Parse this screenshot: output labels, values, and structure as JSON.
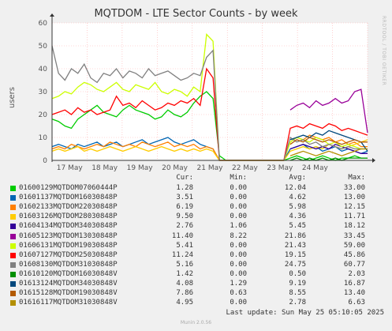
{
  "chart_data": {
    "type": "line",
    "title": "MQTDOM - LTE Sector Counts - by week",
    "ylabel": "users",
    "ylim": [
      0,
      60
    ],
    "yticks": [
      0,
      10,
      20,
      30,
      40,
      50,
      60
    ],
    "xticks": [
      "17 May",
      "18 May",
      "19 May",
      "20 May",
      "21 May",
      "22 May",
      "23 May",
      "24 May"
    ],
    "x_range_days": [
      "16 May",
      "25 May"
    ],
    "grid": true,
    "legend_columns": [
      "Cur:",
      "Min:",
      "Avg:",
      "Max:"
    ],
    "series": [
      {
        "name": "01600129MQTDOM07060444P",
        "color": "#00cc00",
        "cur": "1.28",
        "min": "0.00",
        "avg": "12.04",
        "max": "33.00",
        "values": [
          18,
          17,
          15,
          14,
          18,
          20,
          22,
          24,
          21,
          20,
          19,
          22,
          24,
          22,
          21,
          20,
          18,
          19,
          22,
          20,
          19,
          21,
          25,
          28,
          30,
          27,
          2,
          0,
          0,
          0,
          0,
          0,
          0,
          0,
          0,
          0,
          0,
          1,
          2,
          1,
          0,
          1,
          2,
          1,
          0,
          1,
          1,
          2,
          1,
          1
        ]
      },
      {
        "name": "01601137MQTDOM16030848P",
        "color": "#0066b3",
        "cur": "3.51",
        "min": "0.00",
        "avg": "4.62",
        "max": "13.00",
        "values": [
          6,
          7,
          6,
          5,
          7,
          6,
          7,
          8,
          6,
          7,
          8,
          6,
          7,
          8,
          9,
          7,
          8,
          9,
          10,
          8,
          7,
          8,
          9,
          7,
          6,
          5,
          0,
          0,
          0,
          0,
          0,
          0,
          0,
          0,
          0,
          0,
          0,
          5,
          6,
          7,
          5,
          6,
          4,
          5,
          6,
          4,
          5,
          4,
          3,
          4
        ]
      },
      {
        "name": "01602133MQTDOM22030848P",
        "color": "#ff8000",
        "cur": "6.19",
        "min": "0.00",
        "avg": "5.98",
        "max": "12.15",
        "values": [
          5,
          6,
          5,
          7,
          6,
          5,
          6,
          7,
          6,
          8,
          7,
          6,
          7,
          6,
          8,
          7,
          6,
          7,
          8,
          6,
          7,
          6,
          7,
          5,
          6,
          5,
          0,
          0,
          0,
          0,
          0,
          0,
          0,
          0,
          0,
          0,
          0,
          8,
          10,
          9,
          11,
          10,
          9,
          10,
          8,
          9,
          7,
          8,
          6,
          6
        ]
      },
      {
        "name": "01603126MQTDOM28030848P",
        "color": "#ffcc00",
        "cur": "9.50",
        "min": "0.00",
        "avg": "4.36",
        "max": "11.71",
        "values": [
          4,
          5,
          4,
          5,
          6,
          4,
          5,
          4,
          5,
          6,
          5,
          4,
          5,
          6,
          5,
          4,
          5,
          6,
          5,
          4,
          5,
          4,
          5,
          4,
          5,
          4,
          0,
          0,
          0,
          0,
          0,
          0,
          0,
          0,
          0,
          0,
          0,
          4,
          5,
          6,
          5,
          6,
          5,
          7,
          6,
          5,
          6,
          7,
          8,
          9
        ]
      },
      {
        "name": "01604134MQTDOM34030848P",
        "color": "#330099",
        "cur": "2.76",
        "min": "1.06",
        "avg": "5.45",
        "max": "18.12",
        "values": [
          null,
          null,
          null,
          null,
          null,
          null,
          null,
          null,
          null,
          null,
          null,
          null,
          null,
          null,
          null,
          null,
          null,
          null,
          null,
          null,
          null,
          null,
          null,
          null,
          null,
          null,
          null,
          null,
          null,
          null,
          null,
          null,
          null,
          null,
          null,
          null,
          null,
          5,
          6,
          7,
          6,
          5,
          6,
          5,
          7,
          6,
          5,
          4,
          3,
          3
        ]
      },
      {
        "name": "01605123MQTDOM13030848P",
        "color": "#990099",
        "cur": "11.40",
        "min": "8.22",
        "avg": "21.86",
        "max": "33.45",
        "values": [
          null,
          null,
          null,
          null,
          null,
          null,
          null,
          null,
          null,
          null,
          null,
          null,
          null,
          null,
          null,
          null,
          null,
          null,
          null,
          null,
          null,
          null,
          null,
          null,
          null,
          null,
          null,
          null,
          null,
          null,
          null,
          null,
          null,
          null,
          null,
          null,
          null,
          22,
          24,
          25,
          23,
          26,
          24,
          25,
          27,
          25,
          26,
          30,
          31,
          12
        ]
      },
      {
        "name": "01606131MQTDOM19030848P",
        "color": "#ccff00",
        "cur": "5.41",
        "min": "0.00",
        "avg": "21.43",
        "max": "59.00",
        "values": [
          27,
          28,
          30,
          29,
          32,
          34,
          33,
          31,
          30,
          32,
          34,
          31,
          30,
          33,
          32,
          31,
          34,
          30,
          29,
          31,
          30,
          28,
          32,
          30,
          55,
          52,
          0,
          0,
          0,
          0,
          0,
          0,
          0,
          0,
          0,
          0,
          0,
          8,
          10,
          9,
          8,
          10,
          9,
          7,
          8,
          6,
          7,
          6,
          5,
          5
        ]
      },
      {
        "name": "01607127MQTDOM25030848P",
        "color": "#ff0000",
        "cur": "11.24",
        "min": "0.00",
        "avg": "19.15",
        "max": "45.86",
        "values": [
          20,
          21,
          22,
          20,
          23,
          21,
          22,
          20,
          21,
          22,
          28,
          24,
          25,
          23,
          26,
          24,
          22,
          23,
          25,
          24,
          26,
          25,
          27,
          24,
          40,
          36,
          0,
          0,
          0,
          0,
          0,
          0,
          0,
          0,
          0,
          0,
          0,
          14,
          15,
          14,
          16,
          15,
          14,
          16,
          15,
          13,
          14,
          13,
          12,
          11
        ]
      },
      {
        "name": "01608130MQTDOM31030848P",
        "color": "#808080",
        "cur": "5.16",
        "min": "0.00",
        "avg": "24.75",
        "max": "60.77",
        "values": [
          50,
          38,
          35,
          40,
          38,
          42,
          36,
          34,
          38,
          37,
          40,
          36,
          39,
          38,
          36,
          40,
          37,
          38,
          39,
          37,
          35,
          36,
          38,
          37,
          45,
          48,
          0,
          0,
          0,
          0,
          0,
          0,
          0,
          0,
          0,
          0,
          0,
          10,
          8,
          9,
          7,
          8,
          6,
          7,
          6,
          5,
          6,
          5,
          5,
          5
        ]
      },
      {
        "name": "01610120MQTDOM16030848V",
        "color": "#008f00",
        "cur": "1.42",
        "min": "0.00",
        "avg": "0.50",
        "max": "2.03",
        "values": [
          null,
          null,
          null,
          null,
          null,
          null,
          null,
          null,
          null,
          null,
          null,
          null,
          null,
          null,
          null,
          null,
          null,
          null,
          null,
          null,
          null,
          null,
          null,
          null,
          null,
          null,
          null,
          null,
          null,
          null,
          null,
          null,
          null,
          null,
          null,
          null,
          null,
          0,
          1,
          0,
          1,
          0,
          1,
          0,
          1,
          0,
          1,
          1,
          1,
          1
        ]
      },
      {
        "name": "01613124MQTDOM34030848V",
        "color": "#00487d",
        "cur": "4.08",
        "min": "1.29",
        "avg": "9.19",
        "max": "16.87",
        "values": [
          null,
          null,
          null,
          null,
          null,
          null,
          null,
          null,
          null,
          null,
          null,
          null,
          null,
          null,
          null,
          null,
          null,
          null,
          null,
          null,
          null,
          null,
          null,
          null,
          null,
          null,
          null,
          null,
          null,
          null,
          null,
          null,
          null,
          null,
          null,
          null,
          null,
          9,
          10,
          11,
          10,
          12,
          11,
          13,
          12,
          11,
          10,
          9,
          8,
          4
        ]
      },
      {
        "name": "01615128MQTDOM19030848V",
        "color": "#b35a00",
        "cur": "7.86",
        "min": "0.63",
        "avg": "8.55",
        "max": "13.40",
        "values": [
          null,
          null,
          null,
          null,
          null,
          null,
          null,
          null,
          null,
          null,
          null,
          null,
          null,
          null,
          null,
          null,
          null,
          null,
          null,
          null,
          null,
          null,
          null,
          null,
          null,
          null,
          null,
          null,
          null,
          null,
          null,
          null,
          null,
          null,
          null,
          null,
          null,
          7,
          9,
          8,
          10,
          9,
          8,
          9,
          8,
          7,
          8,
          9,
          8,
          8
        ]
      },
      {
        "name": "01616117MQTDOM31030848V",
        "color": "#b38f00",
        "cur": "4.95",
        "min": "0.00",
        "avg": "2.78",
        "max": "6.63",
        "values": [
          null,
          null,
          null,
          null,
          null,
          null,
          null,
          null,
          null,
          null,
          null,
          null,
          null,
          null,
          null,
          null,
          null,
          null,
          null,
          null,
          null,
          null,
          null,
          null,
          null,
          null,
          null,
          null,
          null,
          null,
          null,
          null,
          null,
          null,
          null,
          null,
          null,
          2,
          3,
          4,
          3,
          2,
          3,
          4,
          3,
          2,
          3,
          4,
          5,
          5
        ]
      }
    ]
  },
  "watermark": "RRDTOOL / TOBI OETIKER",
  "last_update": "Last update: Sun May 25 05:10:05 2025",
  "footer": "Munin 2.0.56"
}
